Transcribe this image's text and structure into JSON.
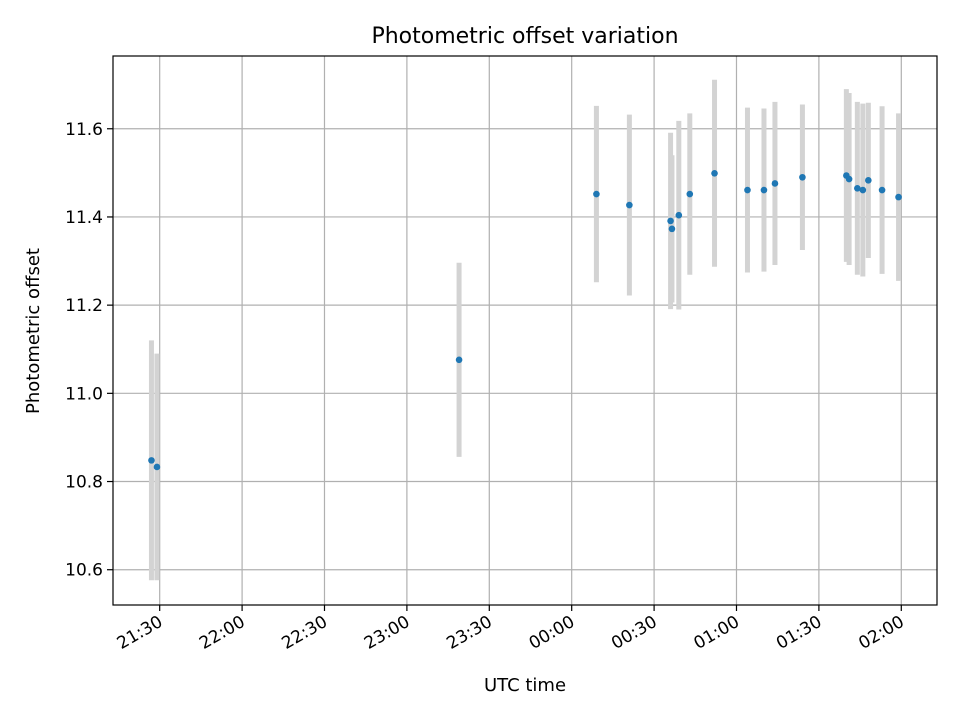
{
  "chart_data": {
    "type": "scatter",
    "title": "Photometric offset variation",
    "xlabel": "UTC time",
    "ylabel": "Photometric offset",
    "x_axis_type": "time",
    "x_range": [
      "21:13",
      "02:13"
    ],
    "ylim": [
      10.52,
      11.765
    ],
    "x_ticks": [
      "21:30",
      "22:00",
      "22:30",
      "23:00",
      "23:30",
      "00:00",
      "00:30",
      "01:00",
      "01:30",
      "02:00"
    ],
    "y_ticks": [
      10.6,
      10.8,
      11.0,
      11.2,
      11.4,
      11.6
    ],
    "y_tick_labels": [
      "10.6",
      "10.8",
      "11.0",
      "11.2",
      "11.4",
      "11.6"
    ],
    "grid": true,
    "legend": "none",
    "colors": {
      "point": "#1f77b4",
      "errorbar": "#d3d3d3",
      "grid": "#b0b0b0"
    },
    "points": [
      {
        "x": "21:27",
        "y": 10.848,
        "yerr": 0.272
      },
      {
        "x": "21:29",
        "y": 10.833,
        "yerr": 0.257
      },
      {
        "x": "23:19",
        "y": 11.076,
        "yerr": 0.22
      },
      {
        "x": "00:09",
        "y": 11.452,
        "yerr": 0.2
      },
      {
        "x": "00:21",
        "y": 11.427,
        "yerr": 0.205
      },
      {
        "x": "00:36",
        "y": 11.391,
        "yerr": 0.2
      },
      {
        "x": "00:36.5",
        "y": 11.373,
        "yerr": 0.167
      },
      {
        "x": "00:39",
        "y": 11.404,
        "yerr": 0.214
      },
      {
        "x": "00:43",
        "y": 11.452,
        "yerr": 0.183
      },
      {
        "x": "00:52",
        "y": 11.499,
        "yerr": 0.212
      },
      {
        "x": "01:04",
        "y": 11.461,
        "yerr": 0.187
      },
      {
        "x": "01:10",
        "y": 11.461,
        "yerr": 0.185
      },
      {
        "x": "01:14",
        "y": 11.476,
        "yerr": 0.185
      },
      {
        "x": "01:24",
        "y": 11.49,
        "yerr": 0.165
      },
      {
        "x": "01:40",
        "y": 11.494,
        "yerr": 0.196
      },
      {
        "x": "01:41",
        "y": 11.486,
        "yerr": 0.195
      },
      {
        "x": "01:44",
        "y": 11.465,
        "yerr": 0.196
      },
      {
        "x": "01:46",
        "y": 11.461,
        "yerr": 0.196
      },
      {
        "x": "01:48",
        "y": 11.483,
        "yerr": 0.176
      },
      {
        "x": "01:53",
        "y": 11.461,
        "yerr": 0.19
      },
      {
        "x": "01:59",
        "y": 11.445,
        "yerr": 0.19
      }
    ]
  }
}
